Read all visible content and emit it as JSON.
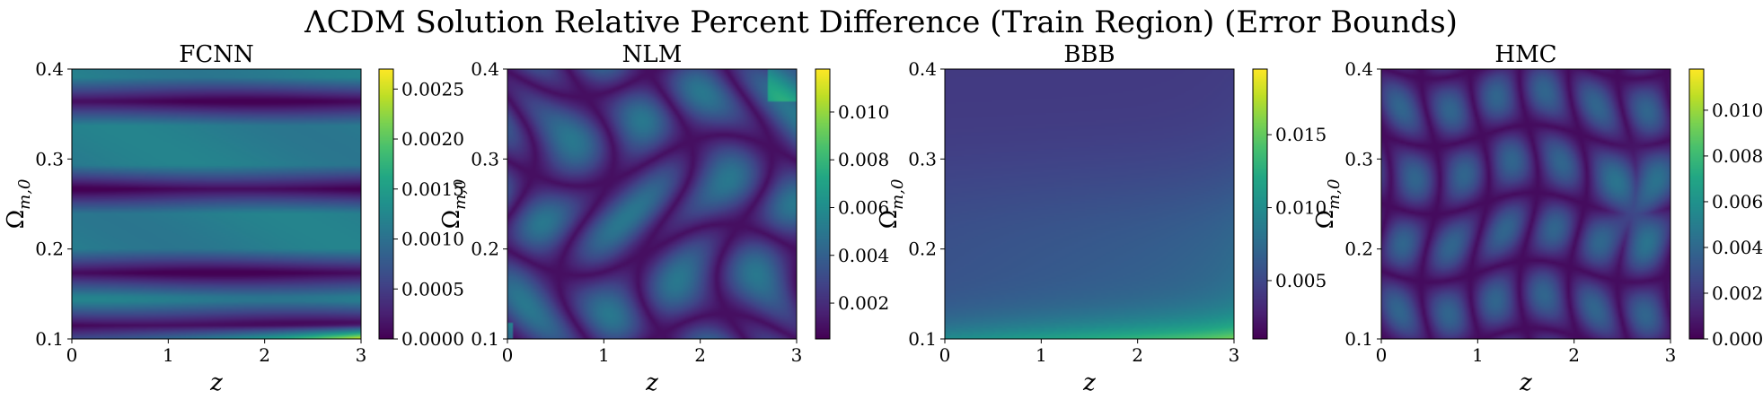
{
  "figure": {
    "title": "ΛCDM Solution Relative Percent Difference (Train Region) (Error Bounds)"
  },
  "chart_data": [
    {
      "type": "heatmap",
      "title": "FCNN",
      "xlabel": "z",
      "ylabel": "Ω",
      "ylabel_sub": "m,0",
      "xlim": [
        0,
        3
      ],
      "ylim": [
        0.1,
        0.4
      ],
      "x_ticks": [
        "0",
        "1",
        "2",
        "3"
      ],
      "y_ticks": [
        "0.1",
        "0.2",
        "0.3",
        "0.4"
      ],
      "colorbar": {
        "min": 0.0,
        "max": 0.0027,
        "ticks": [
          "0.0000",
          "0.0005",
          "0.0010",
          "0.0015",
          "0.0020",
          "0.0025"
        ],
        "tick_values": [
          0.0,
          0.0005,
          0.001,
          0.0015,
          0.002,
          0.0025
        ]
      },
      "pattern": "horizontal-bands",
      "grid": false,
      "colormap": "viridis"
    },
    {
      "type": "heatmap",
      "title": "NLM",
      "xlabel": "z",
      "ylabel": "Ω",
      "ylabel_sub": "m,0",
      "xlim": [
        0,
        3
      ],
      "ylim": [
        0.1,
        0.4
      ],
      "x_ticks": [
        "0",
        "1",
        "2",
        "3"
      ],
      "y_ticks": [
        "0.1",
        "0.2",
        "0.3",
        "0.4"
      ],
      "colorbar": {
        "min": 0.0005,
        "max": 0.0118,
        "ticks": [
          "0.002",
          "0.004",
          "0.006",
          "0.008",
          "0.010"
        ],
        "tick_values": [
          0.002,
          0.004,
          0.006,
          0.008,
          0.01
        ]
      },
      "pattern": "cellular",
      "grid": false,
      "colormap": "viridis"
    },
    {
      "type": "heatmap",
      "title": "BBB",
      "xlabel": "z",
      "ylabel": "Ω",
      "ylabel_sub": "m,0",
      "xlim": [
        0,
        3
      ],
      "ylim": [
        0.1,
        0.4
      ],
      "x_ticks": [
        "0",
        "1",
        "2",
        "3"
      ],
      "y_ticks": [
        "0.1",
        "0.2",
        "0.3",
        "0.4"
      ],
      "colorbar": {
        "min": 0.001,
        "max": 0.0195,
        "ticks": [
          "0.005",
          "0.010",
          "0.015"
        ],
        "tick_values": [
          0.005,
          0.01,
          0.015
        ]
      },
      "pattern": "smooth-gradient",
      "grid": false,
      "colormap": "viridis"
    },
    {
      "type": "heatmap",
      "title": "HMC",
      "xlabel": "z",
      "ylabel": "Ω",
      "ylabel_sub": "m,0",
      "xlim": [
        0,
        3
      ],
      "ylim": [
        0.1,
        0.4
      ],
      "x_ticks": [
        "0",
        "1",
        "2",
        "3"
      ],
      "y_ticks": [
        "0.1",
        "0.2",
        "0.3",
        "0.4"
      ],
      "colorbar": {
        "min": 0.0,
        "max": 0.0118,
        "ticks": [
          "0.000",
          "0.002",
          "0.004",
          "0.006",
          "0.008",
          "0.010"
        ],
        "tick_values": [
          0.0,
          0.002,
          0.004,
          0.006,
          0.008,
          0.01
        ]
      },
      "pattern": "cells",
      "grid": false,
      "colormap": "viridis"
    }
  ]
}
